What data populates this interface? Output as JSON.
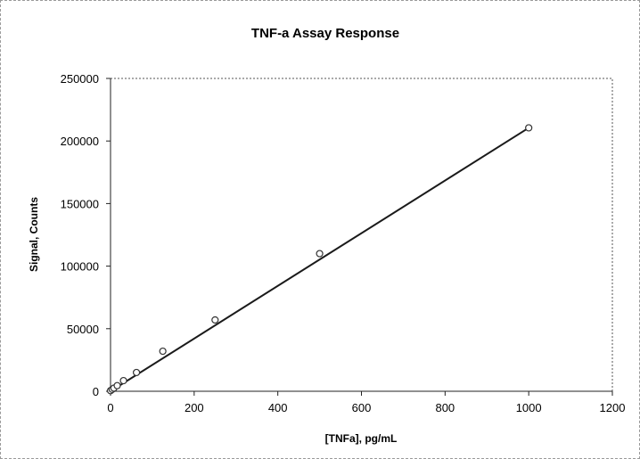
{
  "chart_data": {
    "type": "scatter",
    "title": "TNF-a Assay Response",
    "xlabel": "[TNFa], pg/mL",
    "ylabel": "Signal, Counts",
    "xlim": [
      0,
      1200
    ],
    "ylim": [
      0,
      250000
    ],
    "xticks": [
      0,
      200,
      400,
      600,
      800,
      1000,
      1200
    ],
    "yticks": [
      0,
      50000,
      100000,
      150000,
      200000,
      250000
    ],
    "grid": false,
    "legend": "none",
    "series": [
      {
        "marker": "circle",
        "x": [
          0,
          4,
          8,
          16,
          31,
          62,
          125,
          250,
          500,
          1000
        ],
        "y": [
          500,
          1500,
          2500,
          4500,
          8500,
          15000,
          32000,
          57000,
          110000,
          210500
        ]
      }
    ],
    "trendline": {
      "type": "linear",
      "x": [
        0,
        1000
      ],
      "y": [
        0,
        210500
      ]
    }
  },
  "colors": {
    "line": "#1a1a1a",
    "marker": "#333333",
    "axis": "#222222",
    "frame": "#9a9a9a"
  }
}
